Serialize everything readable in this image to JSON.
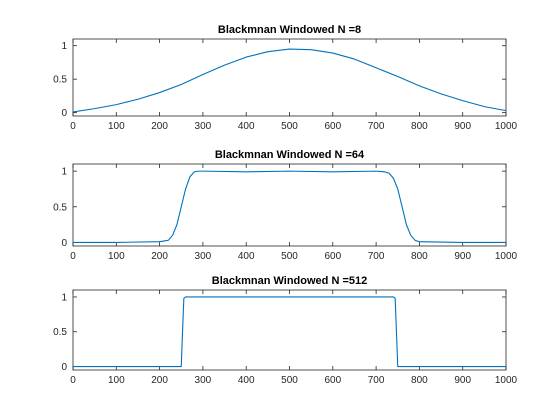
{
  "window": {
    "title": ""
  },
  "colors": {
    "series": "#0072bd",
    "axes": "#262626",
    "background": "#ffffff"
  },
  "chart_data": [
    {
      "type": "line",
      "title": "Blackmnan Windowed N =8",
      "xlabel": "",
      "ylabel": "",
      "xlim": [
        0,
        1000
      ],
      "ylim": [
        -0.05,
        1.1
      ],
      "xticks": [
        0,
        100,
        200,
        300,
        400,
        500,
        600,
        700,
        800,
        900,
        1000
      ],
      "yticks": [
        0,
        0.5,
        1
      ],
      "ytick_labels": [
        "0",
        "0.5",
        "1"
      ],
      "grid": false,
      "legend": "none",
      "series": [
        {
          "x": [
            0,
            50,
            100,
            150,
            200,
            250,
            300,
            350,
            400,
            450,
            500,
            550,
            600,
            650,
            700,
            750,
            800,
            850,
            900,
            950,
            1000
          ],
          "y": [
            0.01,
            0.06,
            0.12,
            0.2,
            0.3,
            0.42,
            0.57,
            0.71,
            0.83,
            0.91,
            0.95,
            0.94,
            0.89,
            0.8,
            0.67,
            0.54,
            0.4,
            0.28,
            0.18,
            0.09,
            0.03
          ]
        }
      ]
    },
    {
      "type": "line",
      "title": "Blackmnan Windowed N =64",
      "xlabel": "",
      "ylabel": "",
      "xlim": [
        0,
        1000
      ],
      "ylim": [
        -0.05,
        1.1
      ],
      "xticks": [
        0,
        100,
        200,
        300,
        400,
        500,
        600,
        700,
        800,
        900,
        1000
      ],
      "yticks": [
        0,
        0.5,
        1
      ],
      "ytick_labels": [
        "0",
        "0.5",
        "1"
      ],
      "grid": false,
      "legend": "none",
      "series": [
        {
          "x": [
            0,
            100,
            200,
            220,
            230,
            240,
            250,
            260,
            270,
            280,
            290,
            300,
            400,
            500,
            600,
            700,
            720,
            730,
            740,
            750,
            760,
            770,
            780,
            790,
            800,
            900,
            1000
          ],
          "y": [
            0,
            0,
            0.01,
            0.03,
            0.1,
            0.25,
            0.5,
            0.75,
            0.92,
            0.99,
            1.0,
            1.0,
            0.99,
            1.0,
            0.99,
            1.0,
            0.99,
            0.97,
            0.9,
            0.75,
            0.5,
            0.25,
            0.1,
            0.03,
            0.01,
            0,
            0
          ]
        }
      ]
    },
    {
      "type": "line",
      "title": "Blackmnan Windowed N =512",
      "xlabel": "",
      "ylabel": "",
      "xlim": [
        0,
        1000
      ],
      "ylim": [
        -0.05,
        1.1
      ],
      "xticks": [
        0,
        100,
        200,
        300,
        400,
        500,
        600,
        700,
        800,
        900,
        1000
      ],
      "yticks": [
        0,
        0.5,
        1
      ],
      "ytick_labels": [
        "0",
        "0.5",
        "1"
      ],
      "grid": false,
      "legend": "none",
      "series": [
        {
          "x": [
            0,
            250,
            253,
            256,
            260,
            500,
            740,
            744,
            747,
            750,
            1000
          ],
          "y": [
            0,
            0,
            0.5,
            0.98,
            1.0,
            1.0,
            1.0,
            0.98,
            0.5,
            0,
            0
          ]
        }
      ]
    }
  ]
}
